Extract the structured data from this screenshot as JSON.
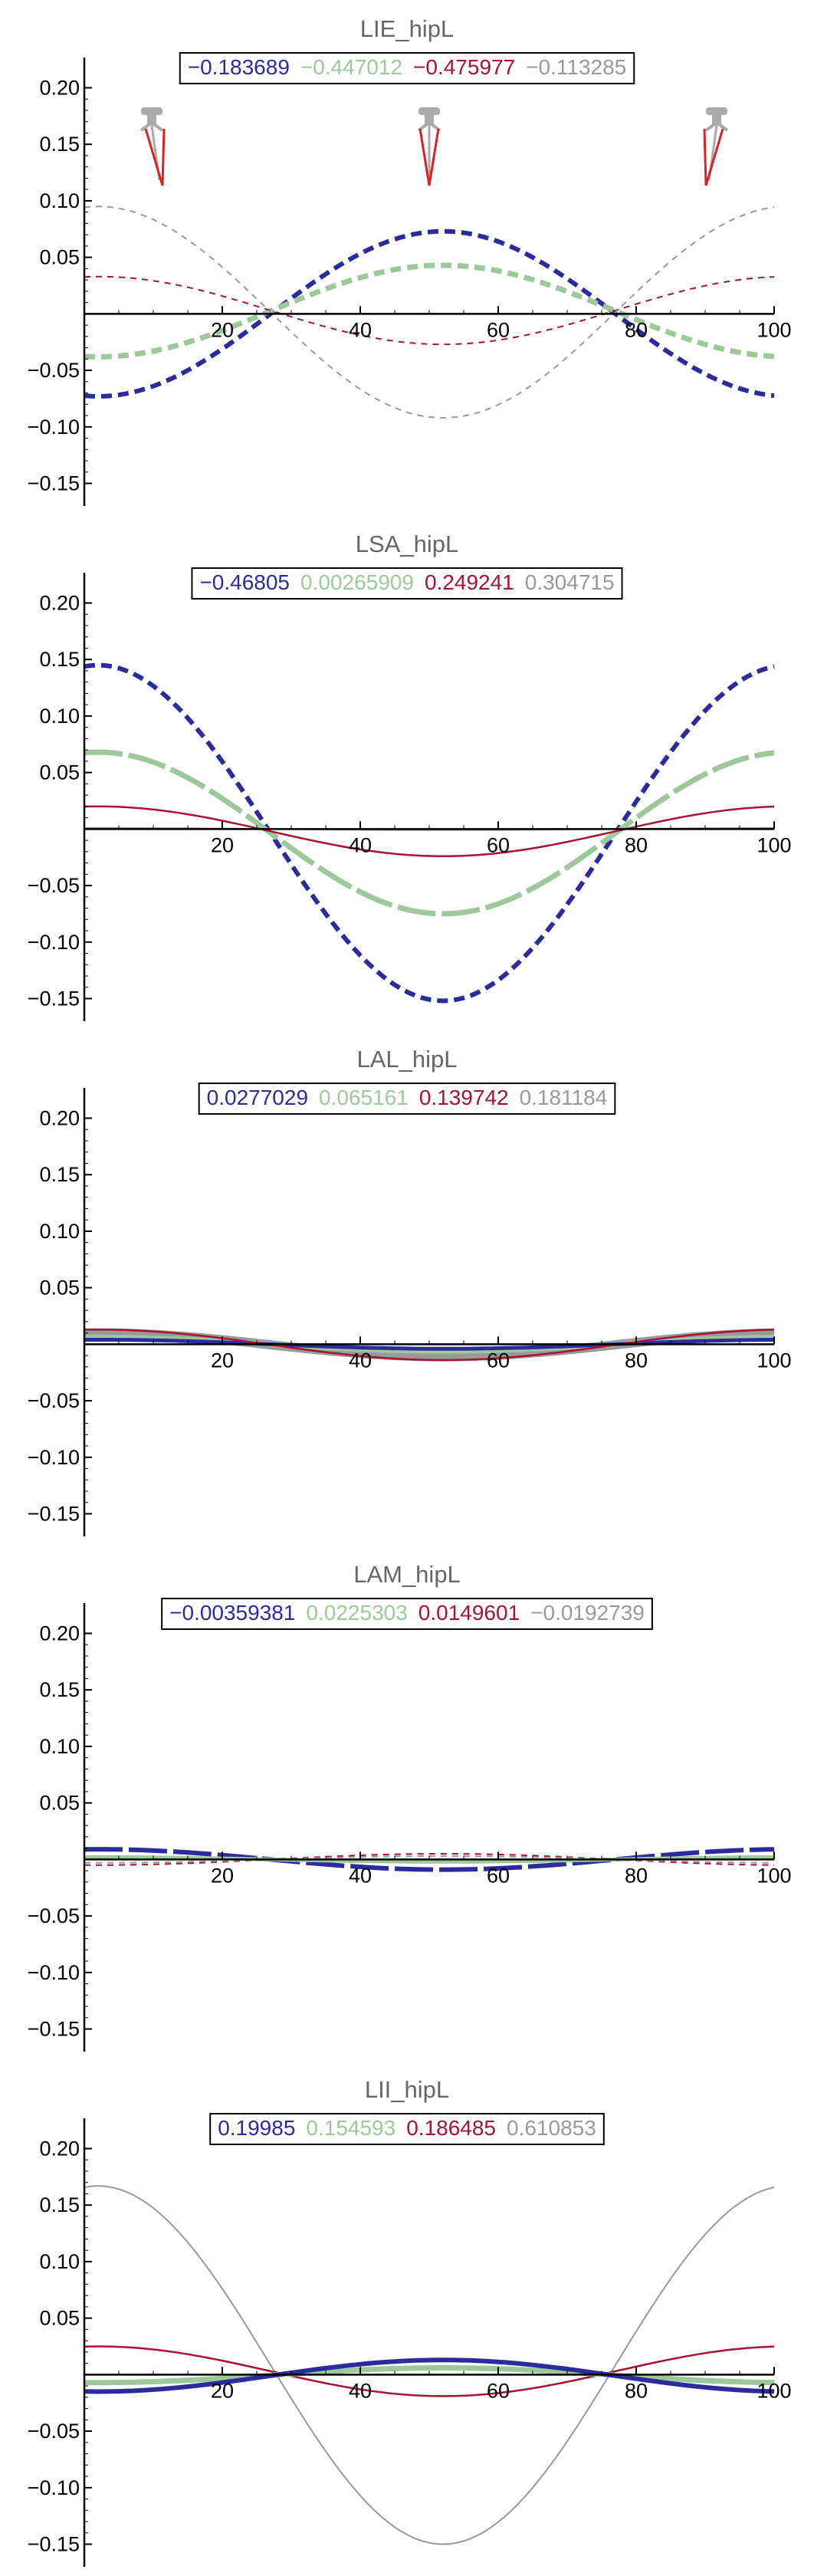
{
  "colors": {
    "blue": "#2b2b9e",
    "green": "#9cc89a",
    "red": "#aa1133",
    "gray": "#999999"
  },
  "chart_data": [
    {
      "type": "line",
      "title": "LIE_hipL",
      "legend": [
        "−0.183689",
        "−0.447012",
        "−0.475977",
        "−0.113285"
      ],
      "xlim": [
        0,
        100
      ],
      "ylim": [
        -0.17,
        0.22
      ],
      "xticks": [
        20,
        40,
        60,
        80,
        100
      ],
      "yticks": [
        0.2,
        0.15,
        0.1,
        0.05,
        -0.05,
        -0.1,
        -0.15
      ],
      "ytick_labels": [
        "0.20",
        "0.15",
        "0.10",
        "0.05",
        "−0.05",
        "−0.10",
        "−0.15"
      ],
      "series": [
        {
          "color": "blue",
          "style": "dashed",
          "width": 6,
          "values": [
            -0.073,
            0.073
          ]
        },
        {
          "color": "green",
          "style": "dashed",
          "width": 7,
          "values": [
            -0.038,
            0.043
          ]
        },
        {
          "color": "red",
          "style": "dashed",
          "width": 2,
          "values": [
            0.033,
            -0.027
          ]
        },
        {
          "color": "gray",
          "style": "dashed",
          "width": 2,
          "values": [
            0.095,
            -0.092
          ]
        }
      ]
    },
    {
      "type": "line",
      "title": "LSA_hipL",
      "legend": [
        "−0.46805",
        "0.00265909",
        "0.249241",
        "0.304715"
      ],
      "xlim": [
        0,
        100
      ],
      "ylim": [
        -0.17,
        0.22
      ],
      "xticks": [
        20,
        40,
        60,
        80,
        100
      ],
      "yticks": [
        0.2,
        0.15,
        0.1,
        0.05,
        -0.05,
        -0.1,
        -0.15
      ],
      "ytick_labels": [
        "0.20",
        "0.15",
        "0.10",
        "0.05",
        "−0.05",
        "−0.10",
        "−0.15"
      ],
      "series": [
        {
          "color": "blue",
          "style": "dashed",
          "width": 6,
          "values": [
            0.145,
            -0.152
          ]
        },
        {
          "color": "green",
          "style": "solid-dashed",
          "width": 7,
          "values": [
            0.068,
            -0.075
          ]
        },
        {
          "color": "red",
          "style": "solid",
          "width": 2.5,
          "values": [
            0.02,
            -0.024
          ]
        },
        {
          "color": "gray",
          "style": "solid",
          "width": 2,
          "values": [
            0.001,
            -0.001
          ]
        }
      ]
    },
    {
      "type": "line",
      "title": "LAL_hipL",
      "legend": [
        "0.0277029",
        "0.065161",
        "0.139742",
        "0.181184"
      ],
      "xlim": [
        0,
        100
      ],
      "ylim": [
        -0.17,
        0.22
      ],
      "xticks": [
        20,
        40,
        60,
        80,
        100
      ],
      "yticks": [
        0.2,
        0.15,
        0.1,
        0.05,
        -0.05,
        -0.1,
        -0.15
      ],
      "ytick_labels": [
        "0.20",
        "0.15",
        "0.10",
        "0.05",
        "−0.05",
        "−0.10",
        "−0.15"
      ],
      "series": [
        {
          "color": "gray",
          "style": "solid",
          "width": 12,
          "values": [
            0.01,
            -0.011
          ]
        },
        {
          "color": "green",
          "style": "solid",
          "width": 7,
          "values": [
            0.006,
            -0.006
          ]
        },
        {
          "color": "blue",
          "style": "solid",
          "width": 5,
          "values": [
            0.004,
            -0.004
          ]
        },
        {
          "color": "red",
          "style": "solid",
          "width": 2.5,
          "values": [
            0.013,
            -0.014
          ]
        }
      ]
    },
    {
      "type": "line",
      "title": "LAM_hipL",
      "legend": [
        "−0.00359381",
        "0.0225303",
        "0.0149601",
        "−0.0192739"
      ],
      "xlim": [
        0,
        100
      ],
      "ylim": [
        -0.17,
        0.22
      ],
      "xticks": [
        20,
        40,
        60,
        80,
        100
      ],
      "yticks": [
        0.2,
        0.15,
        0.1,
        0.05,
        -0.05,
        -0.1,
        -0.15
      ],
      "ytick_labels": [
        "0.20",
        "0.15",
        "0.10",
        "0.05",
        "−0.05",
        "−0.10",
        "−0.15"
      ],
      "series": [
        {
          "color": "blue",
          "style": "solid-dashed",
          "width": 6,
          "values": [
            0.009,
            -0.009
          ]
        },
        {
          "color": "green",
          "style": "solid",
          "width": 5,
          "values": [
            0.002,
            -0.002
          ]
        },
        {
          "color": "red",
          "style": "dashed",
          "width": 2,
          "values": [
            -0.005,
            0.005
          ]
        },
        {
          "color": "gray",
          "style": "dashed",
          "width": 2,
          "values": [
            -0.003,
            0.003
          ]
        }
      ]
    },
    {
      "type": "line",
      "title": "LII_hipL",
      "legend": [
        "0.19985",
        "0.154593",
        "0.186485",
        "0.610853"
      ],
      "xlim": [
        0,
        100
      ],
      "ylim": [
        -0.17,
        0.22
      ],
      "xticks": [
        20,
        40,
        60,
        80,
        100
      ],
      "yticks": [
        0.2,
        0.15,
        0.1,
        0.05,
        -0.05,
        -0.1,
        -0.15
      ],
      "ytick_labels": [
        "0.20",
        "0.15",
        "0.10",
        "0.05",
        "−0.05",
        "−0.10",
        "−0.15"
      ],
      "series": [
        {
          "color": "gray",
          "style": "solid",
          "width": 2,
          "values": [
            0.167,
            -0.15
          ]
        },
        {
          "color": "red",
          "style": "solid",
          "width": 2.5,
          "values": [
            0.025,
            -0.019
          ]
        },
        {
          "color": "green",
          "style": "solid",
          "width": 7,
          "values": [
            -0.007,
            0.006
          ]
        },
        {
          "color": "blue",
          "style": "solid",
          "width": 6,
          "values": [
            -0.015,
            0.013
          ]
        }
      ]
    }
  ]
}
